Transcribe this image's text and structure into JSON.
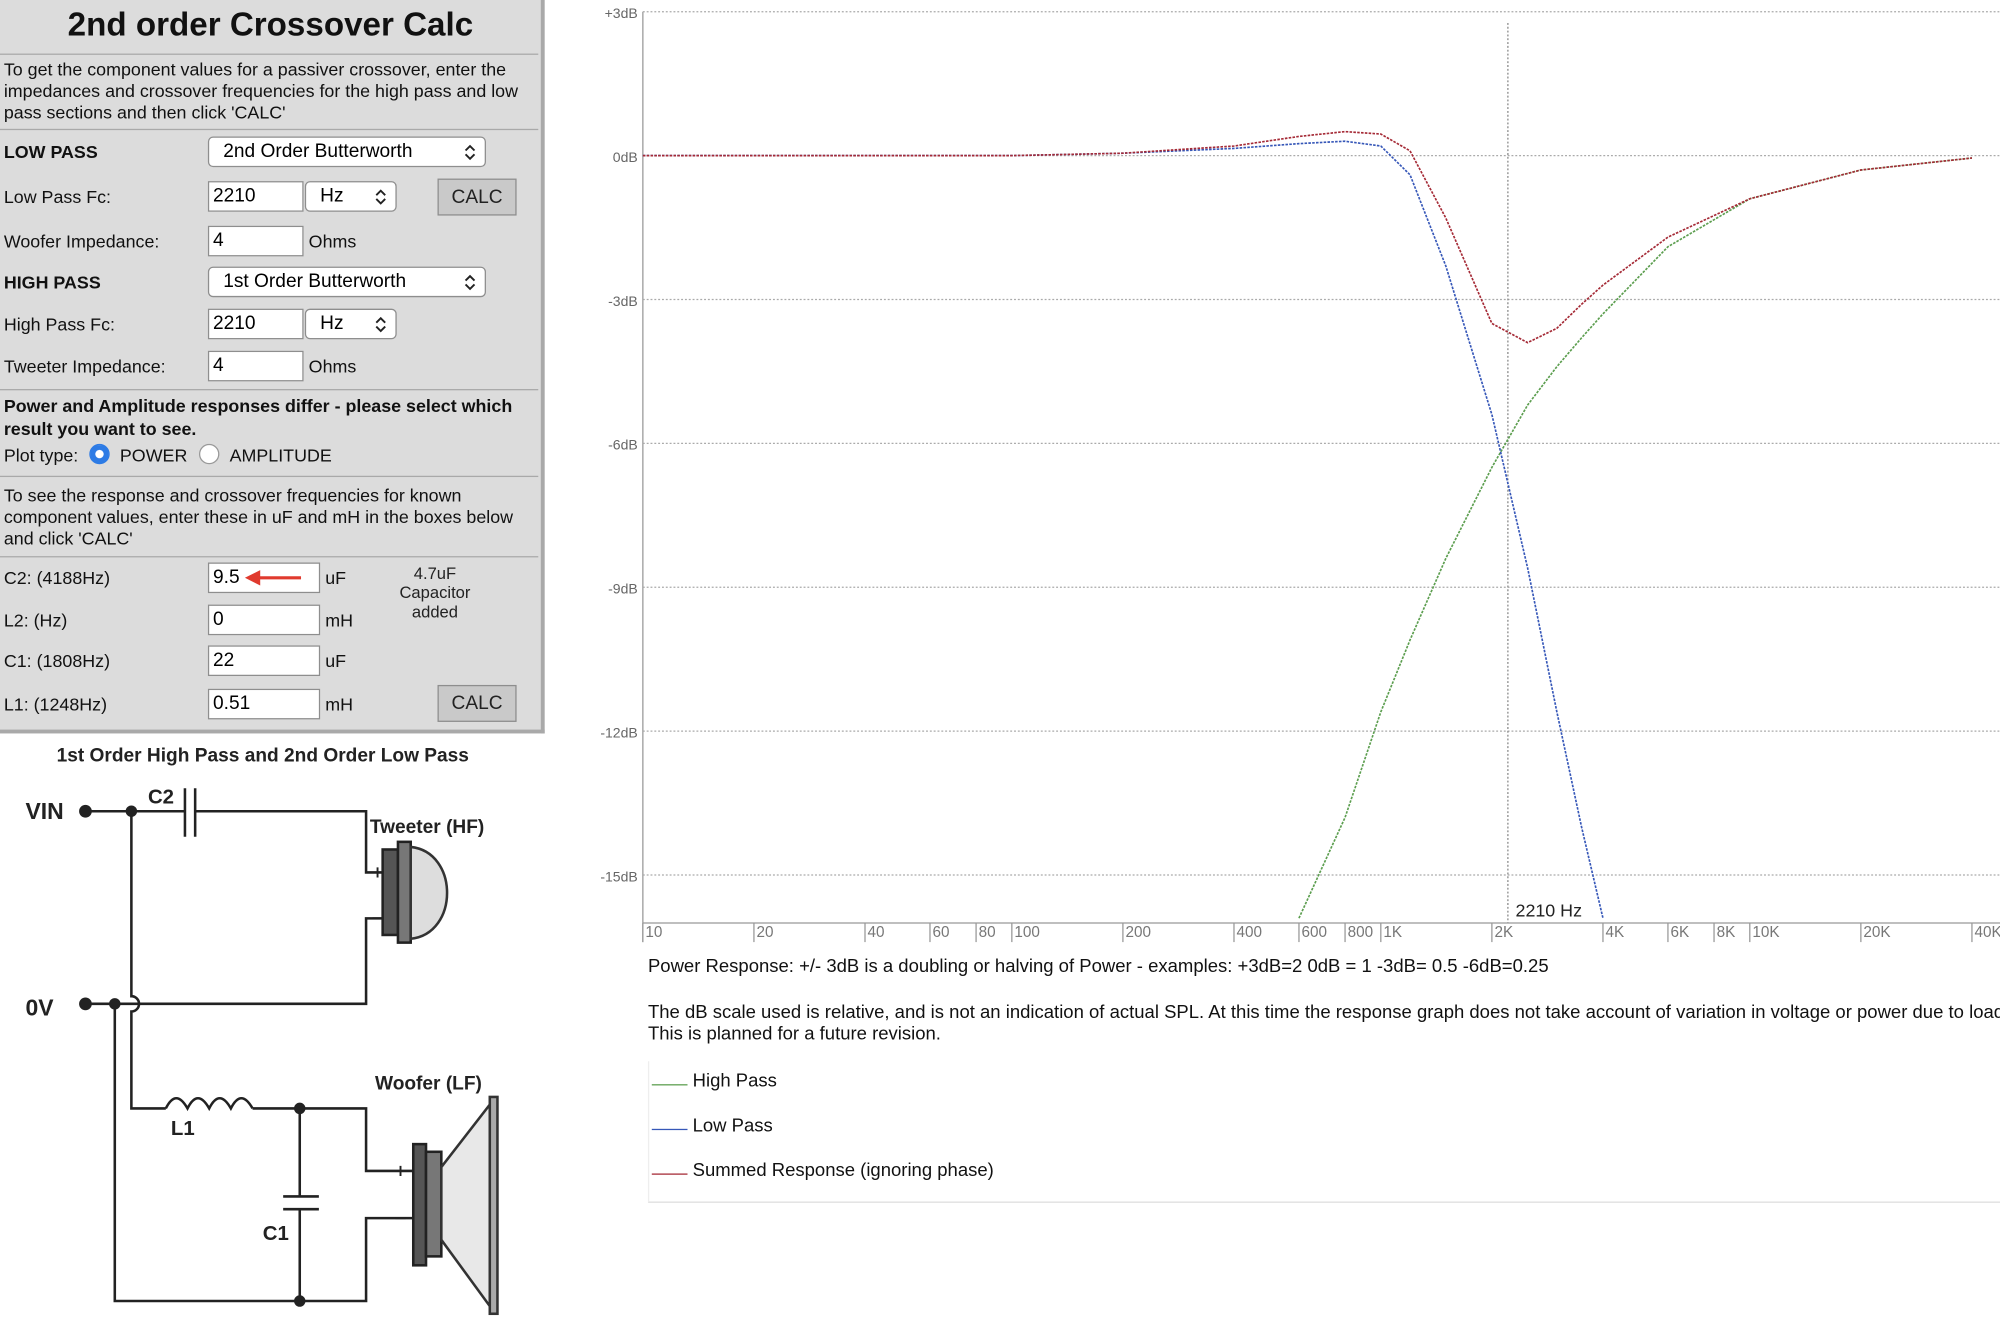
{
  "calculator": {
    "title": "2nd order Crossover Calc",
    "intro": "To get the component values for a passiver crossover, enter the impedances and crossover frequencies for the high pass and low pass sections and then click 'CALC'",
    "low_pass": {
      "heading": "LOW PASS",
      "filter": "2nd Order Butterworth",
      "fc_label": "Low Pass Fc:",
      "fc": 2210,
      "fc_unit": "Hz",
      "impedance_label": "Woofer Impedance:",
      "impedance": 4,
      "impedance_unit": "Ohms"
    },
    "high_pass": {
      "heading": "HIGH PASS",
      "filter": "1st Order Butterworth",
      "fc_label": "High Pass Fc:",
      "fc": 2210,
      "fc_unit": "Hz",
      "impedance_label": "Tweeter Impedance:",
      "impedance": 4,
      "impedance_unit": "Ohms"
    },
    "calc_button": "CALC",
    "plot_note": "Power and Amplitude responses differ - please select which result you want to see.",
    "plot_type_label": "Plot type:",
    "plot_options": [
      "POWER",
      "AMPLITUDE"
    ],
    "plot_selected": 0,
    "components_intro": "To see the response and crossover frequencies for known component values, enter these in uF and mH in the boxes below and click 'CALC'",
    "components": [
      {
        "label": "C2: (4188Hz)",
        "value": 9.5,
        "unit": "uF"
      },
      {
        "label": "L2: (Hz)",
        "value": 0,
        "unit": "mH"
      },
      {
        "label": "C1: (1808Hz)",
        "value": 22,
        "unit": "uF"
      },
      {
        "label": "L1: (1248Hz)",
        "value": 0.51,
        "unit": "mH"
      }
    ],
    "annotation": [
      "4.7uF",
      "Capacitor",
      "added"
    ]
  },
  "diagram": {
    "title": "1st Order High Pass and 2nd Order Low Pass",
    "vin": "VIN",
    "c2": "C2",
    "tweeter": "Tweeter (HF)",
    "ov": "0V",
    "l1": "L1",
    "woofer": "Woofer (LF)",
    "c1": "C1"
  },
  "chart_data": {
    "type": "line",
    "log_x": true,
    "x": [
      10,
      100,
      200,
      400,
      600,
      800,
      1000,
      1200,
      1500,
      2000,
      2500,
      3000,
      3500,
      4000,
      6000,
      10000,
      20000,
      40000
    ],
    "series": [
      {
        "name": "High Pass",
        "color": "#5c9e4f",
        "values": [
          null,
          null,
          null,
          null,
          -15.9,
          -13.8,
          -11.6,
          -10.1,
          -8.4,
          -6.5,
          -5.2,
          -4.4,
          -3.8,
          -3.3,
          -1.9,
          -0.9,
          -0.3,
          -0.05
        ]
      },
      {
        "name": "Low Pass",
        "color": "#3657b8",
        "values": [
          0,
          0,
          0.05,
          0.15,
          0.25,
          0.3,
          0.2,
          -0.4,
          -2.3,
          -5.4,
          -8.6,
          -11.6,
          -14,
          -15.9,
          null,
          null,
          null,
          null
        ]
      },
      {
        "name": "Summed Response (ignoring phase)",
        "color": "#a52a36",
        "values": [
          0,
          0,
          0.05,
          0.2,
          0.4,
          0.5,
          0.45,
          0.1,
          -1.3,
          -3.5,
          -3.9,
          -3.6,
          -3.1,
          -2.7,
          -1.7,
          -0.9,
          -0.3,
          -0.05
        ]
      }
    ],
    "xlim": [
      10,
      40000
    ],
    "ylim": [
      -16,
      3
    ],
    "xticks": [
      10,
      20,
      40,
      60,
      80,
      100,
      200,
      400,
      600,
      800,
      {
        "value": 1000,
        "label": "1K"
      },
      {
        "value": 2000,
        "label": "2K"
      },
      {
        "value": 4000,
        "label": "4K"
      },
      {
        "value": 6000,
        "label": "6K"
      },
      {
        "value": 8000,
        "label": "8K"
      },
      {
        "value": 10000,
        "label": "10K"
      },
      {
        "value": 20000,
        "label": "20K"
      },
      {
        "value": 40000,
        "label": "40K"
      }
    ],
    "yticks": [
      {
        "value": 3,
        "label": "+3dB"
      },
      {
        "value": 0,
        "label": "0dB"
      },
      {
        "value": -3,
        "label": "-3dB"
      },
      {
        "value": -6,
        "label": "-6dB"
      },
      {
        "value": -9,
        "label": "-9dB"
      },
      {
        "value": -12,
        "label": "-12dB"
      },
      {
        "value": -15,
        "label": "-15dB"
      }
    ],
    "grid": true,
    "marker": {
      "x": 2210,
      "label": "2210 Hz"
    },
    "power_note": "Power Response: +/- 3dB is a doubling or halving of Power - examples: +3dB=2  0dB = 1  -3dB= 0.5  -6dB=0.25",
    "scale_note": [
      "The dB scale used is relative, and is not an indication of actual SPL. At this time the response graph does not take account of variation in voltage or power due to load",
      "This is planned for a future revision."
    ]
  }
}
